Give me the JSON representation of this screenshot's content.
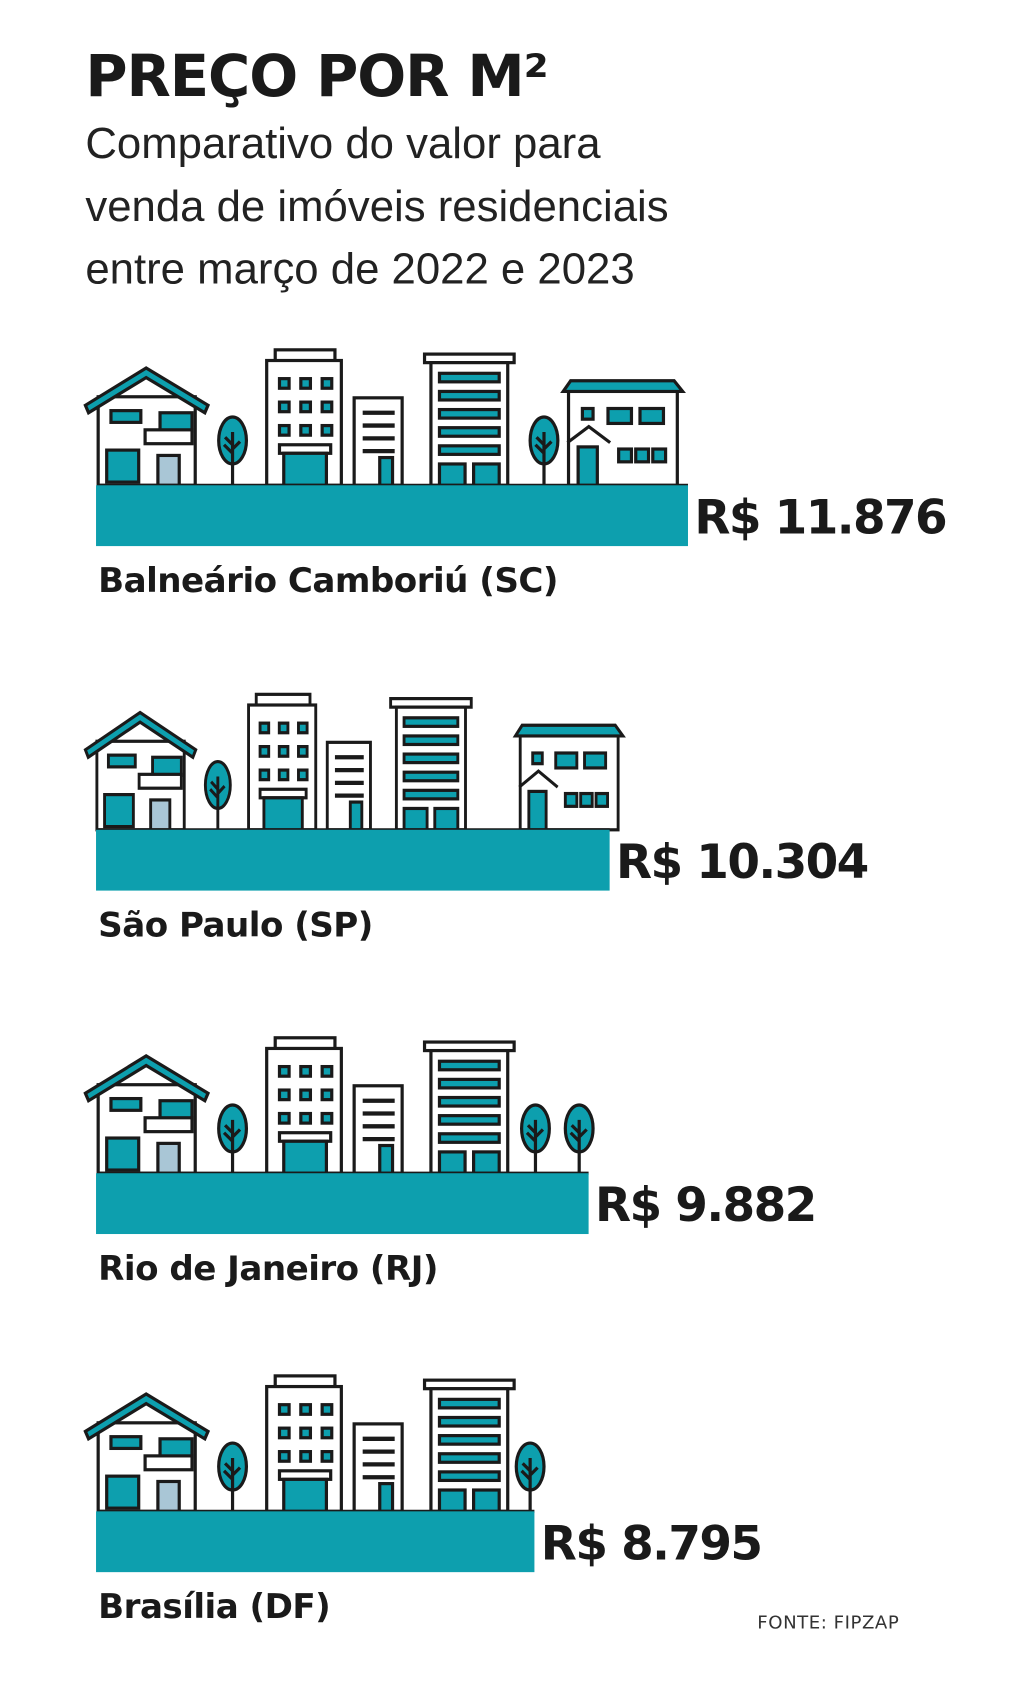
{
  "chart_data": {
    "type": "bar",
    "orientation": "horizontal",
    "title": "PREÇO POR M²",
    "subtitle_lines": [
      "Comparativo do valor para",
      "venda de imóveis residenciais",
      "entre março de 2022 e 2023"
    ],
    "categories": [
      "Balneário Camboriú (SC)",
      "São Paulo (SP)",
      "Rio de Janeiro (RJ)",
      "Brasília (DF)"
    ],
    "values": [
      11876,
      10304,
      9882,
      8795
    ],
    "value_labels": [
      "R$ 11.876",
      "R$ 10.304",
      "R$ 9.882",
      "R$ 8.795"
    ],
    "unit": "R$",
    "grid": false,
    "source": "FONTE: FIPZAP"
  },
  "colors": {
    "bar": "#0d9fae",
    "ink": "#1a1a1a",
    "door": "#a9c6d6"
  }
}
